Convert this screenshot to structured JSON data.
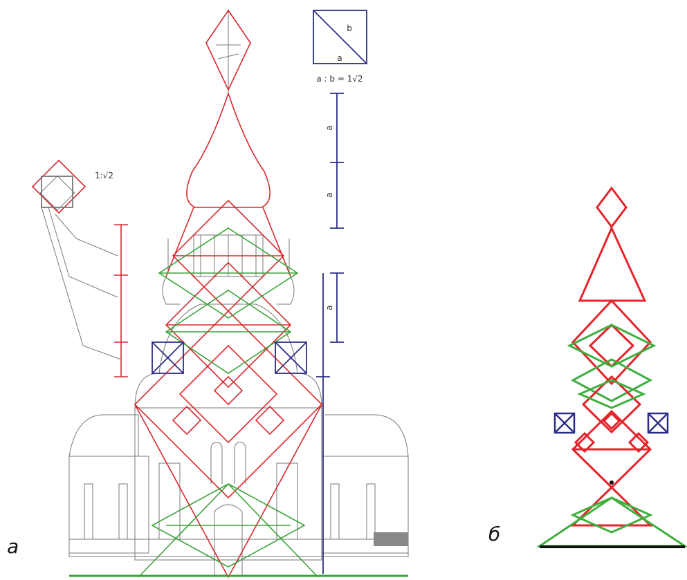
{
  "panels": [
    {
      "label": "а"
    },
    {
      "label": "б"
    }
  ],
  "annotations": {
    "square_ratio": "1:√2",
    "ratio_formula": "a : b = 1√2",
    "side": "a",
    "diagonal": "b",
    "scale_labels": [
      "a",
      "a",
      "a"
    ]
  }
}
